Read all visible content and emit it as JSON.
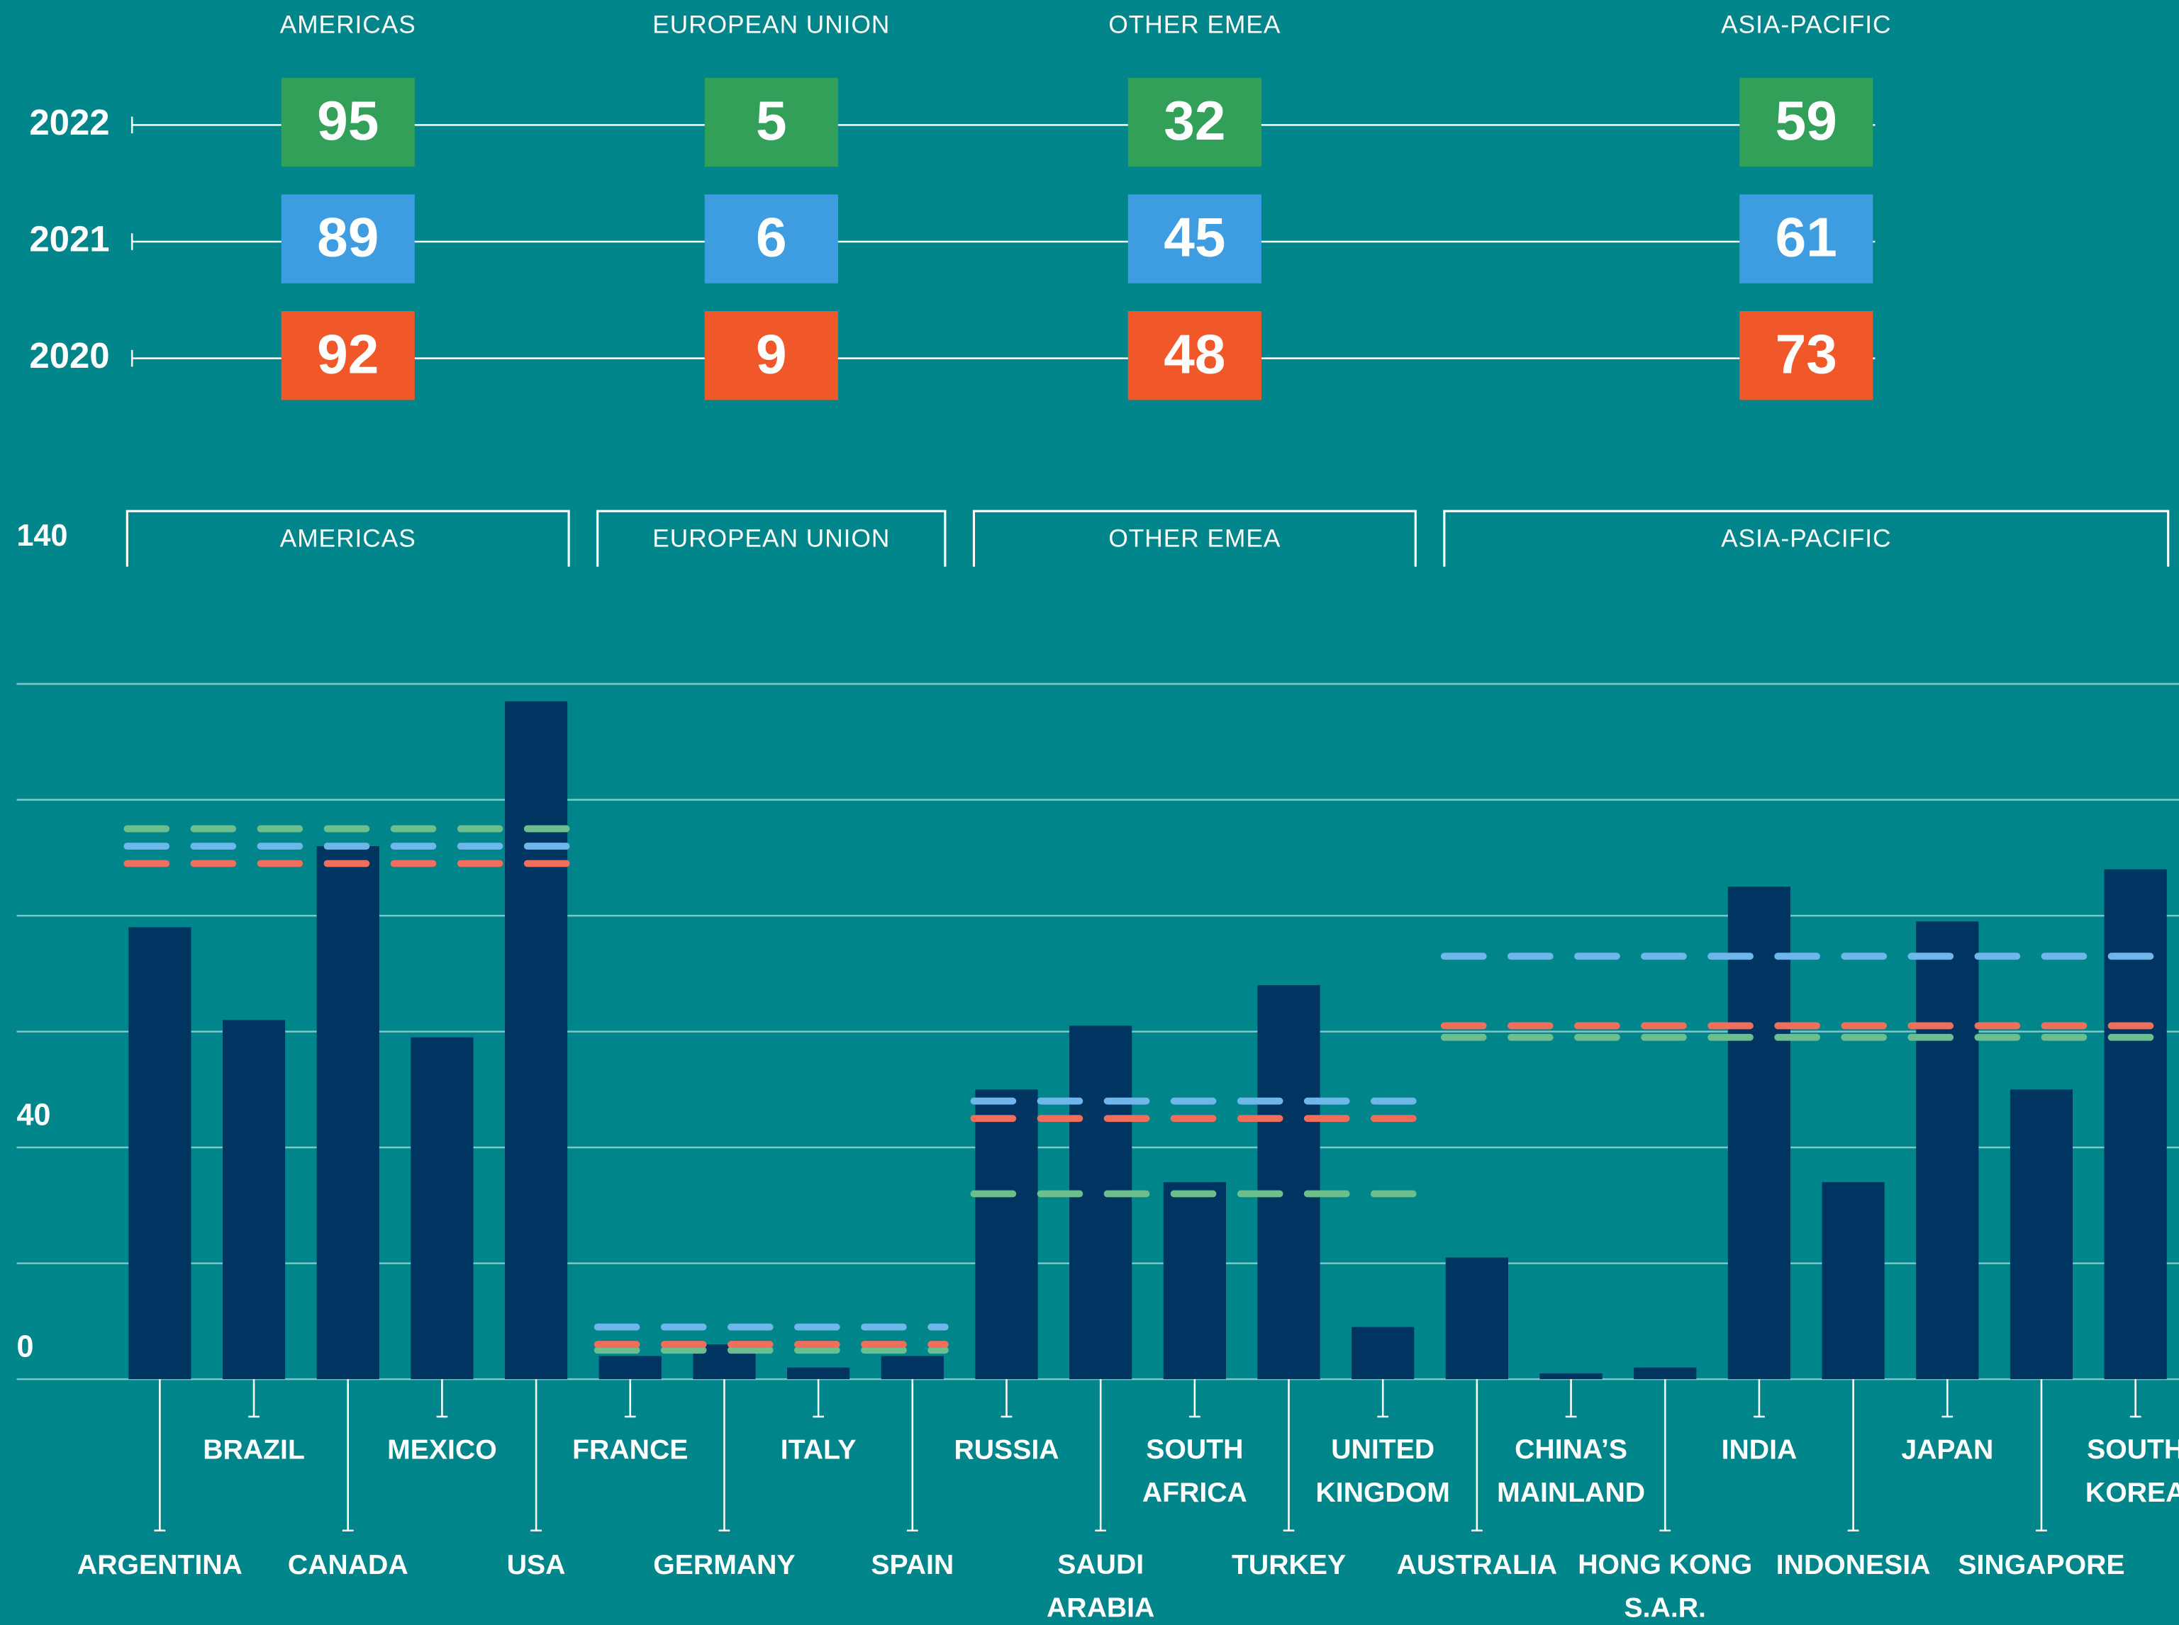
{
  "chart_data": {
    "type": "bar",
    "bar_color": "#003461",
    "ylim": [
      0,
      140
    ],
    "yticks": [
      0,
      40,
      140
    ],
    "grid_step": 20,
    "groups": [
      {
        "name": "AMERICAS",
        "categories": [
          "ARGENTINA",
          "BRAZIL",
          "CANADA",
          "MEXICO",
          "USA"
        ],
        "values": [
          78,
          62,
          92,
          59,
          117
        ]
      },
      {
        "name": "EUROPEAN UNION",
        "categories": [
          "FRANCE",
          "GERMANY",
          "ITALY",
          "SPAIN"
        ],
        "values": [
          4,
          6,
          2,
          4
        ]
      },
      {
        "name": "OTHER EMEA",
        "categories": [
          "RUSSIA",
          "SAUDI\nARABIA",
          "SOUTH\nAFRICA",
          "TURKEY",
          "UNITED\nKINGDOM"
        ],
        "values": [
          50,
          61,
          34,
          68,
          9
        ]
      },
      {
        "name": "ASIA-PACIFIC",
        "categories": [
          "AUSTRALIA",
          "CHINA’S\nMAINLAND",
          "HONG KONG\nS.A.R.",
          "INDIA",
          "INDONESIA",
          "JAPAN",
          "SINGAPORE",
          "SOUTH\nKOREA"
        ],
        "values": [
          21,
          1,
          2,
          85,
          34,
          79,
          50,
          88
        ]
      }
    ],
    "averages": [
      {
        "year": "2022",
        "color": "#33a05a",
        "dash_color": "#6cbf8c",
        "values": [
          95,
          5,
          32,
          59
        ]
      },
      {
        "year": "2021",
        "color": "#3d9de0",
        "dash_color": "#f06f5c",
        "values": [
          89,
          6,
          45,
          61
        ]
      },
      {
        "year": "2020",
        "color": "#f0582a",
        "dash_color": "#6fb7ea",
        "values": [
          92,
          9,
          48,
          73
        ]
      }
    ]
  }
}
